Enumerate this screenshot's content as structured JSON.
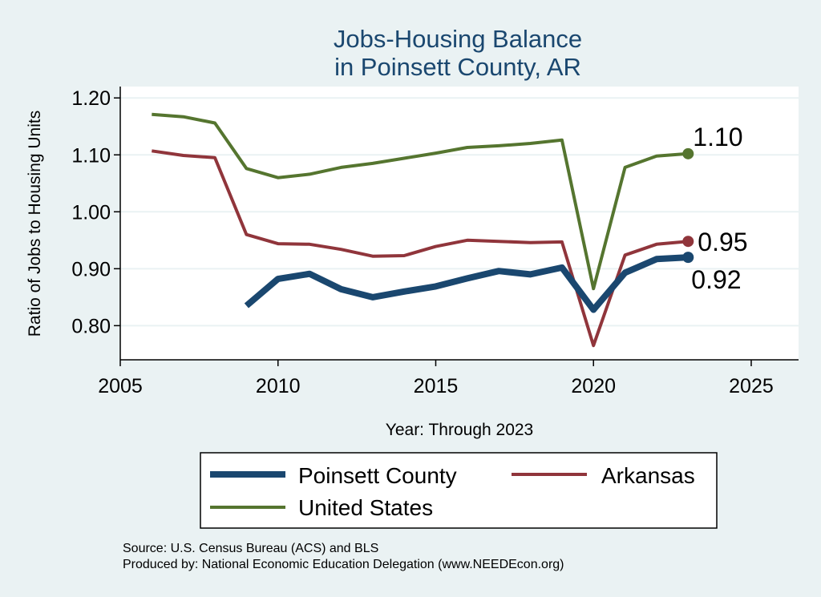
{
  "chart_data": {
    "type": "line",
    "title": [
      "Jobs-Housing Balance",
      "in Poinsett County, AR"
    ],
    "xlabel": "Year: Through 2023",
    "ylabel": "Ratio of Jobs to Housing Units",
    "xlim": [
      2005,
      2026.5
    ],
    "ylim": [
      0.74,
      1.22
    ],
    "xticks": [
      2005,
      2010,
      2015,
      2020,
      2025
    ],
    "yticks": [
      0.8,
      0.9,
      1.0,
      1.1,
      1.2
    ],
    "ytick_labels": [
      "0.80",
      "0.90",
      "1.00",
      "1.10",
      "1.20"
    ],
    "grid": true,
    "series": [
      {
        "name": "Poinsett County",
        "color": "#1a476f",
        "width": 8,
        "x": [
          2009,
          2010,
          2011,
          2012,
          2013,
          2014,
          2015,
          2016,
          2017,
          2018,
          2019,
          2020,
          2021,
          2022,
          2023
        ],
        "values": [
          0.835,
          0.882,
          0.891,
          0.864,
          0.85,
          0.86,
          0.869,
          0.883,
          0.896,
          0.89,
          0.902,
          0.828,
          0.893,
          0.917,
          0.92
        ],
        "end_label": "0.92"
      },
      {
        "name": "Arkansas",
        "color": "#90353b",
        "width": 4,
        "x": [
          2006,
          2007,
          2008,
          2009,
          2010,
          2011,
          2012,
          2013,
          2014,
          2015,
          2016,
          2017,
          2018,
          2019,
          2020,
          2021,
          2022,
          2023
        ],
        "values": [
          1.107,
          1.099,
          1.095,
          0.96,
          0.944,
          0.943,
          0.934,
          0.922,
          0.923,
          0.939,
          0.95,
          0.948,
          0.946,
          0.947,
          0.765,
          0.924,
          0.943,
          0.948
        ],
        "end_label": "0.95"
      },
      {
        "name": "United States",
        "color": "#55752f",
        "width": 4,
        "x": [
          2006,
          2007,
          2008,
          2009,
          2010,
          2011,
          2012,
          2013,
          2014,
          2015,
          2016,
          2017,
          2018,
          2019,
          2020,
          2021,
          2022,
          2023
        ],
        "values": [
          1.171,
          1.167,
          1.156,
          1.076,
          1.06,
          1.066,
          1.078,
          1.085,
          1.094,
          1.103,
          1.113,
          1.116,
          1.12,
          1.126,
          0.865,
          1.078,
          1.098,
          1.102
        ],
        "end_label": "1.10"
      }
    ],
    "legend": {
      "position": "bottom",
      "entries": [
        "Poinsett County",
        "Arkansas",
        "United States"
      ]
    },
    "source": [
      "Source: U.S. Census Bureau (ACS) and BLS",
      "Produced by: National Economic Education Delegation (www.NEEDEcon.org)"
    ]
  }
}
